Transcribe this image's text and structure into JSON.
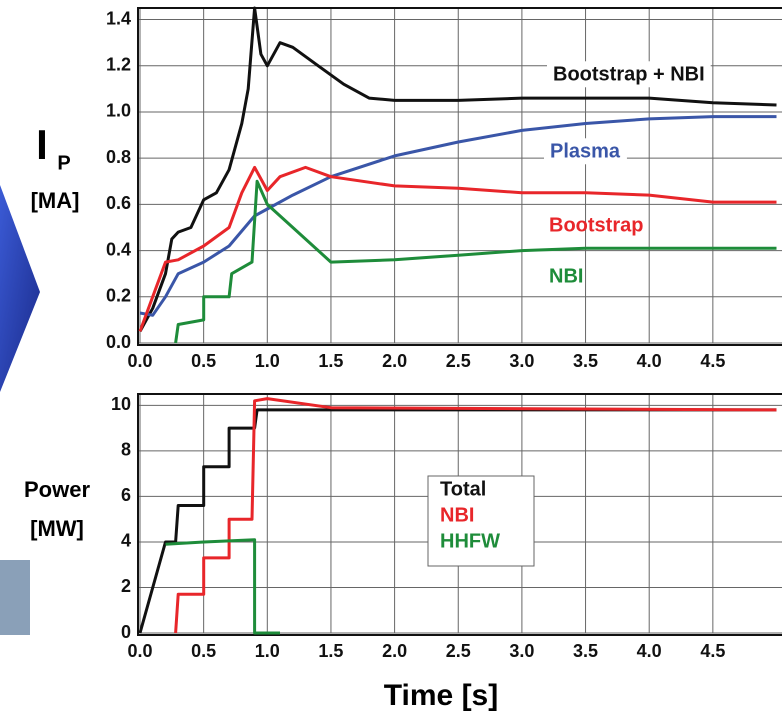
{
  "chart_data": [
    {
      "type": "line",
      "y_label": {
        "symbol": "I",
        "subscript": "P",
        "unit": "[MA]"
      },
      "xlim": [
        0,
        5
      ],
      "ylim": [
        0,
        1.45
      ],
      "xticks": [
        {
          "value": 0,
          "label": "0.0"
        },
        0.5,
        {
          "value": 1,
          "label": "1.0"
        },
        1.5,
        {
          "value": 2,
          "label": "2.0"
        },
        2.5,
        {
          "value": 3,
          "label": "3.0"
        },
        3.5,
        {
          "value": 4,
          "label": "4.0"
        },
        4.5
      ],
      "yticks": [
        {
          "value": 0,
          "label": "0.0"
        },
        0.2,
        0.4,
        0.6,
        0.8,
        {
          "value": 1,
          "label": "1.0"
        },
        {
          "value": 1.2,
          "label": "1.2"
        },
        {
          "value": 1.4,
          "label": "1.4"
        }
      ],
      "grid": true,
      "series": [
        {
          "name": "Bootstrap + NBI",
          "color": "#111111",
          "x": [
            0,
            0.1,
            0.2,
            0.25,
            0.3,
            0.4,
            0.5,
            0.6,
            0.7,
            0.8,
            0.85,
            0.9,
            0.95,
            1.0,
            1.1,
            1.2,
            1.4,
            1.6,
            1.8,
            2.0,
            2.5,
            3.0,
            3.5,
            4.0,
            4.5,
            5.0
          ],
          "values": [
            0.05,
            0.15,
            0.3,
            0.45,
            0.48,
            0.5,
            0.62,
            0.65,
            0.75,
            0.95,
            1.1,
            1.45,
            1.25,
            1.2,
            1.3,
            1.28,
            1.2,
            1.12,
            1.06,
            1.05,
            1.05,
            1.06,
            1.06,
            1.06,
            1.04,
            1.03
          ]
        },
        {
          "name": "Plasma",
          "color": "#3a56a8",
          "x": [
            0,
            0.1,
            0.2,
            0.3,
            0.5,
            0.7,
            0.9,
            1.0,
            1.2,
            1.5,
            2.0,
            2.5,
            3.0,
            3.5,
            4.0,
            4.5,
            5.0
          ],
          "values": [
            0.13,
            0.12,
            0.2,
            0.3,
            0.35,
            0.42,
            0.55,
            0.58,
            0.64,
            0.72,
            0.81,
            0.87,
            0.92,
            0.95,
            0.97,
            0.98,
            0.98
          ]
        },
        {
          "name": "Bootstrap",
          "color": "#e8262a",
          "x": [
            0,
            0.1,
            0.2,
            0.3,
            0.5,
            0.7,
            0.8,
            0.9,
            1.0,
            1.1,
            1.3,
            1.5,
            2.0,
            2.5,
            3.0,
            3.5,
            4.0,
            4.5,
            5.0
          ],
          "values": [
            0.05,
            0.2,
            0.35,
            0.36,
            0.42,
            0.5,
            0.65,
            0.76,
            0.66,
            0.72,
            0.76,
            0.72,
            0.68,
            0.67,
            0.65,
            0.65,
            0.64,
            0.61,
            0.61
          ]
        },
        {
          "name": "NBI",
          "color": "#1e8c3a",
          "x": [
            0.28,
            0.3,
            0.5,
            0.5,
            0.7,
            0.72,
            0.88,
            0.92,
            1.0,
            1.2,
            1.5,
            2.0,
            2.5,
            3.0,
            3.5,
            4.0,
            4.5,
            5.0
          ],
          "values": [
            0,
            0.08,
            0.1,
            0.2,
            0.2,
            0.3,
            0.35,
            0.7,
            0.6,
            0.5,
            0.35,
            0.36,
            0.38,
            0.4,
            0.41,
            0.41,
            0.41,
            0.41
          ]
        }
      ]
    },
    {
      "type": "line",
      "y_label": {
        "name": "Power",
        "unit": "[MW]"
      },
      "x_label": "Time [s]",
      "xlim": [
        0,
        5
      ],
      "ylim": [
        0,
        10.5
      ],
      "xticks": [
        {
          "value": 0,
          "label": "0.0"
        },
        0.5,
        {
          "value": 1,
          "label": "1.0"
        },
        1.5,
        {
          "value": 2,
          "label": "2.0"
        },
        2.5,
        {
          "value": 3,
          "label": "3.0"
        },
        3.5,
        {
          "value": 4,
          "label": "4.0"
        },
        4.5
      ],
      "yticks": [
        0,
        2,
        4,
        6,
        8,
        10
      ],
      "grid": true,
      "series": [
        {
          "name": "Total",
          "color": "#111111",
          "x": [
            0,
            0.2,
            0.28,
            0.3,
            0.5,
            0.5,
            0.7,
            0.7,
            0.9,
            0.92,
            5.0
          ],
          "values": [
            0,
            4,
            4,
            5.6,
            5.6,
            7.3,
            7.3,
            9,
            9,
            9.8,
            9.8
          ]
        },
        {
          "name": "NBI",
          "color": "#e8262a",
          "x": [
            0.28,
            0.3,
            0.5,
            0.5,
            0.7,
            0.7,
            0.88,
            0.9,
            1.0,
            1.5,
            5.0
          ],
          "values": [
            0,
            1.7,
            1.7,
            3.3,
            3.3,
            5,
            5,
            10.2,
            10.3,
            9.9,
            9.8
          ]
        },
        {
          "name": "HHFW",
          "color": "#1e8c3a",
          "x": [
            0.2,
            0.5,
            0.9,
            0.9,
            1.1
          ],
          "values": [
            3.9,
            4,
            4.1,
            0,
            0
          ]
        }
      ]
    }
  ]
}
